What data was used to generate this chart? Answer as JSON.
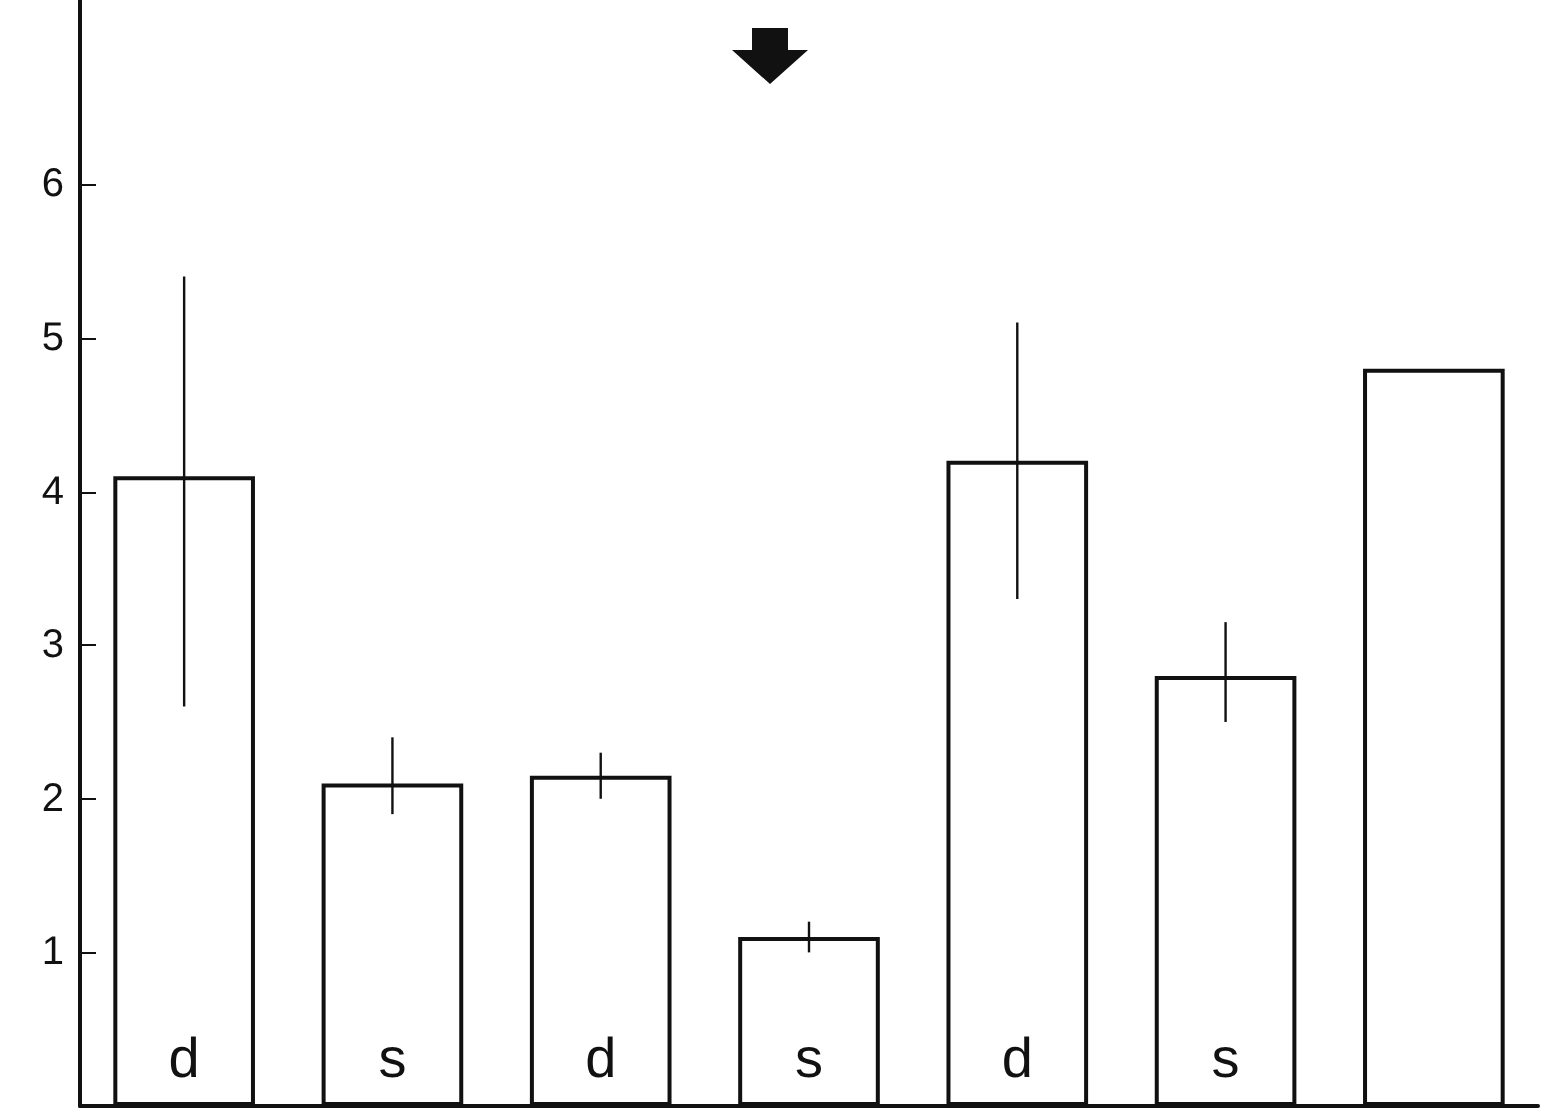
{
  "chart_data": {
    "type": "bar",
    "categories": [
      "d",
      "s",
      "d",
      "s",
      "d",
      "s",
      null
    ],
    "values": [
      4.1,
      2.1,
      2.15,
      1.1,
      4.2,
      2.8,
      4.8
    ],
    "errors": [
      [
        2.6,
        5.4
      ],
      [
        1.9,
        2.4
      ],
      [
        2.0,
        2.3
      ],
      [
        1.0,
        1.2
      ],
      [
        3.3,
        5.1
      ],
      [
        2.5,
        3.15
      ],
      null
    ],
    "colors": [
      "#ffffff",
      "#ffffff",
      "#ffffff",
      "#ffffff",
      "#ffffff",
      "#ffffff",
      "#ffffff"
    ],
    "ylim": [
      0,
      7.2
    ],
    "yticks": [
      1,
      2,
      3,
      4,
      5,
      6
    ],
    "tick_labels": "y"
  }
}
